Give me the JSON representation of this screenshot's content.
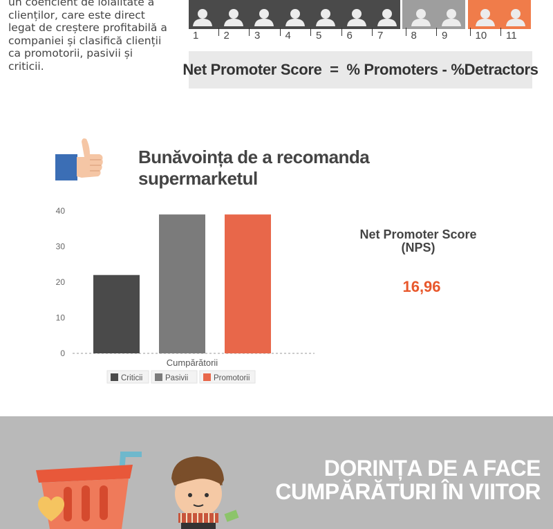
{
  "intro": {
    "lines": [
      "un coeficient de loialitate a",
      "clienților, care este direct",
      "legat de creștere profitabilă a",
      "companiei și clasifică clienții",
      "ca promotorii, pasivii și",
      "criticii."
    ]
  },
  "scale": {
    "numbers": [
      "1",
      "2",
      "3",
      "4",
      "5",
      "6",
      "7",
      "8",
      "9",
      "10",
      "11"
    ],
    "colors": {
      "detractors": "#4a4a4a",
      "passives": "#9e9e9e",
      "promoters": "#f07c4a"
    }
  },
  "formula": "Net Promoter Score  =  % Promoters - %Detractors",
  "icons": {
    "thumb": "thumbs-up-icon",
    "person": "person-icon",
    "cart": "shopping-cart-icon",
    "heart": "heart-icon"
  },
  "chart_data": {
    "type": "bar",
    "title": "Bunăvoința de a recomanda supermarketul",
    "categories": [
      "Cumpărătorii"
    ],
    "xlabel": "Cumpărătorii",
    "ylabel": "",
    "ylim": [
      0,
      40
    ],
    "yticks": [
      0,
      10,
      20,
      30,
      40
    ],
    "grid": false,
    "legend": "bottom",
    "series": [
      {
        "name": "Criticii",
        "values": [
          22
        ],
        "color": "#4a4a4a"
      },
      {
        "name": "Pasivii",
        "values": [
          39
        ],
        "color": "#7b7b7b"
      },
      {
        "name": "Promotorii",
        "values": [
          39
        ],
        "color": "#e8674a"
      }
    ]
  },
  "nps": {
    "label": "Net Promoter Score\n(NPS)",
    "value": "16,96"
  },
  "bottom": {
    "title_line1": "DORINȚA DE A FACE",
    "title_line2": "CUMPĂRĂTURI ÎN VIITOR"
  }
}
